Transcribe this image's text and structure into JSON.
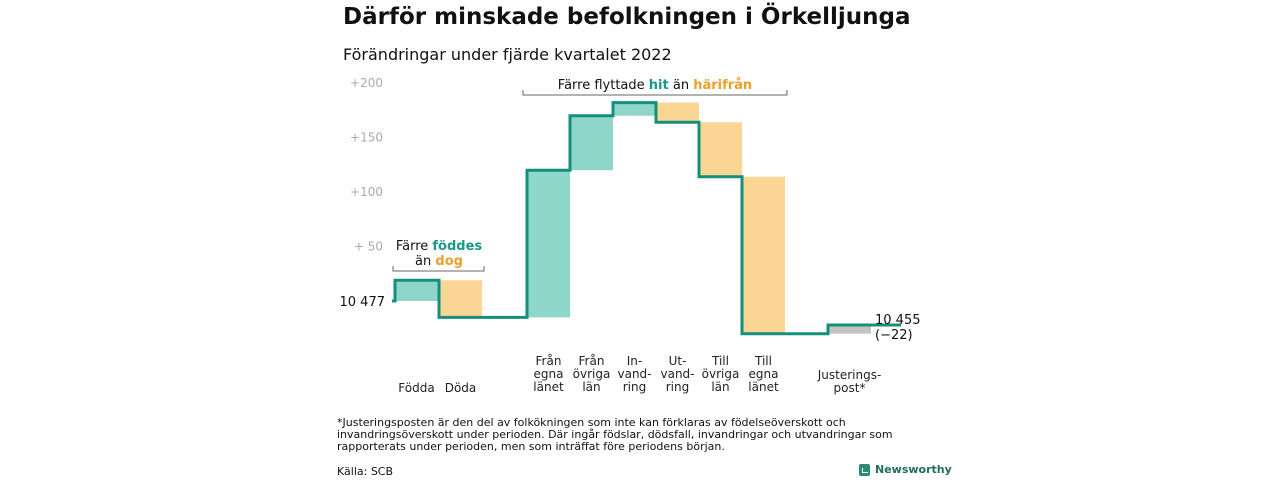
{
  "title": "Därför minskade befolkningen i Örkelljunga",
  "subtitle": "Förändringar under fjärde kvartalet 2022",
  "chart_data": {
    "type": "waterfall",
    "start_value": 10477,
    "start_label": "10 477",
    "end_label": "10 455",
    "end_change_label": "(−22)",
    "y_ticks": [
      {
        "value": 50,
        "label": "+ 50"
      },
      {
        "value": 100,
        "label": "+100"
      },
      {
        "value": 150,
        "label": "+150"
      },
      {
        "value": 200,
        "label": "+200"
      }
    ],
    "ylim": [
      -20,
      205
    ],
    "steps": [
      {
        "label": [
          "Födda"
        ],
        "from": 0,
        "to": 19,
        "color": "#8fd6ca"
      },
      {
        "label": [
          "Döda"
        ],
        "from": 19,
        "to": -15,
        "color": "#fbd594"
      },
      {
        "label": [
          "Från",
          "egna",
          "länet"
        ],
        "from": -15,
        "to": 120,
        "color": "#8fd6ca"
      },
      {
        "label": [
          "Från",
          "övriga",
          "län"
        ],
        "from": 120,
        "to": 170,
        "color": "#8fd6ca"
      },
      {
        "label": [
          "In-",
          "vand-",
          "ring"
        ],
        "from": 170,
        "to": 182,
        "color": "#8fd6ca"
      },
      {
        "label": [
          "Ut-",
          "vand-",
          "ring"
        ],
        "from": 182,
        "to": 164,
        "color": "#fbd594"
      },
      {
        "label": [
          "Till",
          "övriga",
          "län"
        ],
        "from": 164,
        "to": 114,
        "color": "#fbd594"
      },
      {
        "label": [
          "Till",
          "egna",
          "länet"
        ],
        "from": 114,
        "to": -30,
        "color": "#fbd594"
      },
      {
        "label": [
          "Justerings-",
          "post*"
        ],
        "from": -30,
        "to": -22,
        "color": "#c4c4c4"
      }
    ],
    "annotations": {
      "births": {
        "line1": "Färre",
        "highlight1": "föddes",
        "line2": "än",
        "highlight2": "dog"
      },
      "migration": {
        "text": "Färre flyttade",
        "highlight1": "hit",
        "mid": "än",
        "highlight2": "härifrån"
      }
    },
    "colors": {
      "increase": "#8fd6ca",
      "decrease": "#fbd594",
      "adjustment": "#c4c4c4",
      "line": "#148f7c",
      "increase_text": "#1a9a86",
      "decrease_text": "#eaa02a"
    }
  },
  "footnote": "*Justeringsposten är den del av folkökningen som inte kan förklaras av födelseöverskott och invandringsöverskott under perioden. Där ingår födslar, dödsfall, invandringar och utvandringar som rapporterats under perioden, men som inträffat före periodens början.",
  "source": "Källa: SCB",
  "logo_text": "Newsworthy"
}
